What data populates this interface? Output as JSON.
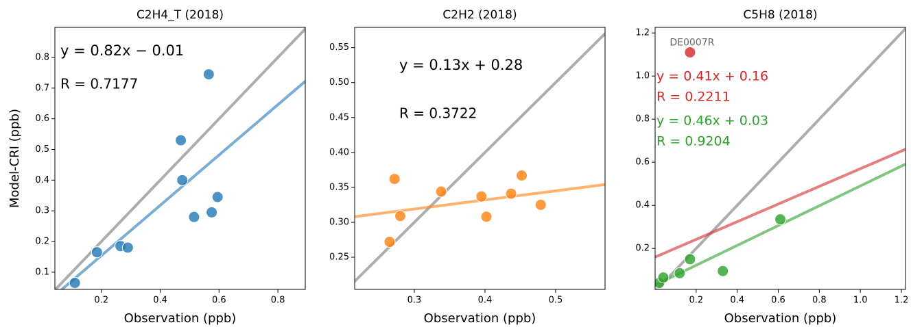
{
  "chart_data": [
    {
      "type": "scatter",
      "title": "C2H4_T (2018)",
      "x_label": "Observation (ppb)",
      "y_label": "Model-CRI (ppb)",
      "xlim": [
        0.042,
        0.893
      ],
      "ylim": [
        0.044,
        0.898
      ],
      "xticks": [
        0.2,
        0.4,
        0.6,
        0.8
      ],
      "yticks": [
        0.1,
        0.2,
        0.3,
        0.4,
        0.5,
        0.6,
        0.7,
        0.8
      ],
      "series": [
        {
          "color": "#1f77b4",
          "x": [
            0.11,
            0.185,
            0.265,
            0.29,
            0.47,
            0.475,
            0.515,
            0.565,
            0.575,
            0.595
          ],
          "values": [
            0.065,
            0.165,
            0.185,
            0.18,
            0.53,
            0.4,
            0.28,
            0.745,
            0.295,
            0.345
          ],
          "fit_slope": 0.82,
          "fit_intercept": -0.01,
          "equation": "y = 0.82x − 0.01",
          "r_label": "R = 0.7177"
        }
      ]
    },
    {
      "type": "scatter",
      "title": "C2H2 (2018)",
      "x_label": "Observation (ppb)",
      "xlim": [
        0.2155,
        0.57
      ],
      "ylim": [
        0.204,
        0.579
      ],
      "xticks": [
        0.3,
        0.4,
        0.5
      ],
      "yticks": [
        0.25,
        {
          "value": 0.3,
          "label": "0.30"
        },
        0.35,
        {
          "value": 0.4,
          "label": "0.40"
        },
        0.45,
        {
          "value": 0.5,
          "label": "0.50"
        },
        0.55
      ],
      "series": [
        {
          "color": "#ff7f0e",
          "x": [
            0.265,
            0.272,
            0.28,
            0.338,
            0.395,
            0.402,
            0.437,
            0.452,
            0.479
          ],
          "values": [
            0.272,
            0.362,
            0.309,
            0.344,
            0.337,
            0.308,
            0.341,
            0.367,
            0.325
          ],
          "fit_slope": 0.13,
          "fit_intercept": 0.28,
          "equation": "y = 0.13x + 0.28",
          "r_label": "R = 0.3722"
        }
      ]
    },
    {
      "type": "scatter",
      "title": "C5H8 (2018)",
      "x_label": "Observation (ppb)",
      "xlim": [
        0.0,
        1.22
      ],
      "ylim": [
        0.01,
        1.226
      ],
      "xticks": [
        0.2,
        0.4,
        0.6,
        0.8,
        {
          "value": 1,
          "label": "1.0"
        },
        1.2
      ],
      "yticks": [
        0.2,
        0.4,
        0.6,
        0.8,
        {
          "value": 1,
          "label": "1.0"
        },
        1.2
      ],
      "series": [
        {
          "color": "#d62728",
          "x": [
            0.17
          ],
          "values": [
            1.11
          ],
          "point_label": "DE0007R",
          "fit_slope": 0.41,
          "fit_intercept": 0.16,
          "equation": "y = 0.41x + 0.16",
          "r_label": "R = 0.2211"
        },
        {
          "color": "#2ca02c",
          "x": [
            0.02,
            0.04,
            0.12,
            0.17,
            0.33,
            0.61
          ],
          "values": [
            0.04,
            0.065,
            0.085,
            0.15,
            0.095,
            0.335
          ],
          "fit_slope": 0.46,
          "fit_intercept": 0.03,
          "equation": "y = 0.46x + 0.03",
          "r_label": "R = 0.9204"
        }
      ]
    }
  ]
}
